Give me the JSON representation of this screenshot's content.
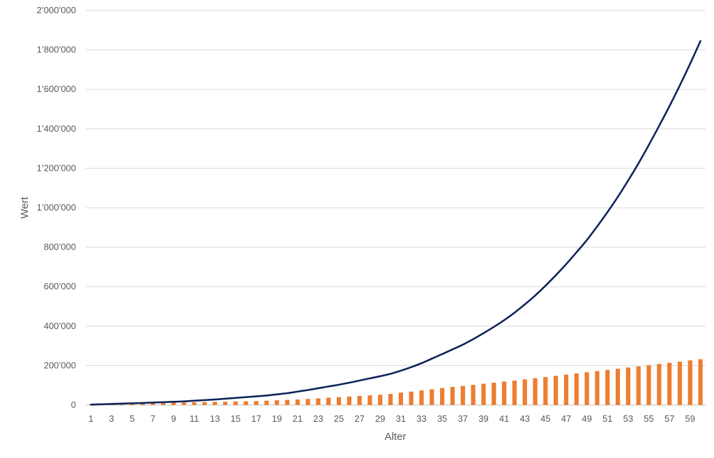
{
  "chart_data": {
    "type": "bar",
    "xlabel": "Alter",
    "ylabel": "Wert",
    "ylim": [
      0,
      2000000
    ],
    "y_ticks": [
      0,
      200000,
      400000,
      600000,
      800000,
      1000000,
      1200000,
      1400000,
      1600000,
      1800000,
      2000000
    ],
    "y_tick_labels": [
      "0",
      "200’000",
      "400’000",
      "600’000",
      "800’000",
      "1’000’000",
      "1’200’000",
      "1’400’000",
      "1’600’000",
      "1’800’000",
      "2’000’000"
    ],
    "x": [
      1,
      2,
      3,
      4,
      5,
      6,
      7,
      8,
      9,
      10,
      11,
      12,
      13,
      14,
      15,
      16,
      17,
      18,
      19,
      20,
      21,
      22,
      23,
      24,
      25,
      26,
      27,
      28,
      29,
      30,
      31,
      32,
      33,
      34,
      35,
      36,
      37,
      38,
      39,
      40,
      41,
      42,
      43,
      44,
      45,
      46,
      47,
      48,
      49,
      50,
      51,
      52,
      53,
      54,
      55,
      56,
      57,
      58,
      59,
      60
    ],
    "x_tick_labels": [
      "1",
      "3",
      "5",
      "7",
      "9",
      "11",
      "13",
      "15",
      "17",
      "19",
      "21",
      "23",
      "25",
      "27",
      "29",
      "31",
      "33",
      "35",
      "37",
      "39",
      "41",
      "43",
      "45",
      "47",
      "49",
      "51",
      "53",
      "55",
      "57",
      "59"
    ],
    "grid": true,
    "series": [
      {
        "type": "bar",
        "color": "#ed7d31",
        "values": [
          4000,
          5000,
          6000,
          7000,
          8000,
          9000,
          10000,
          11000,
          12000,
          13000,
          14000,
          15000,
          16000,
          17000,
          18000,
          19000,
          20000,
          22000,
          24000,
          26000,
          28000,
          31000,
          34000,
          37000,
          40000,
          43000,
          46000,
          49000,
          52000,
          56000,
          63000,
          68000,
          74000,
          80000,
          86000,
          92000,
          97000,
          102000,
          108000,
          113000,
          119000,
          124000,
          130000,
          136000,
          142000,
          148000,
          154000,
          160000,
          166000,
          172000,
          178000,
          184000,
          190000,
          196000,
          202000,
          208000,
          214000,
          220000,
          226000,
          232000
        ]
      },
      {
        "type": "line",
        "color": "#0f2559",
        "values": [
          2000,
          3800,
          5500,
          7200,
          8800,
          10500,
          12500,
          14500,
          16500,
          18500,
          22000,
          25000,
          28000,
          32000,
          36000,
          40000,
          44000,
          48000,
          54000,
          60000,
          68000,
          76000,
          85000,
          94000,
          103000,
          113000,
          124000,
          135000,
          146000,
          158000,
          174000,
          192000,
          212000,
          235000,
          258000,
          282000,
          306000,
          334000,
          364000,
          396000,
          430000,
          468000,
          510000,
          555000,
          605000,
          658000,
          714000,
          774000,
          836000,
          905000,
          978000,
          1055000,
          1138000,
          1225000,
          1318000,
          1415000,
          1515000,
          1620000,
          1730000,
          1845000
        ]
      }
    ]
  }
}
